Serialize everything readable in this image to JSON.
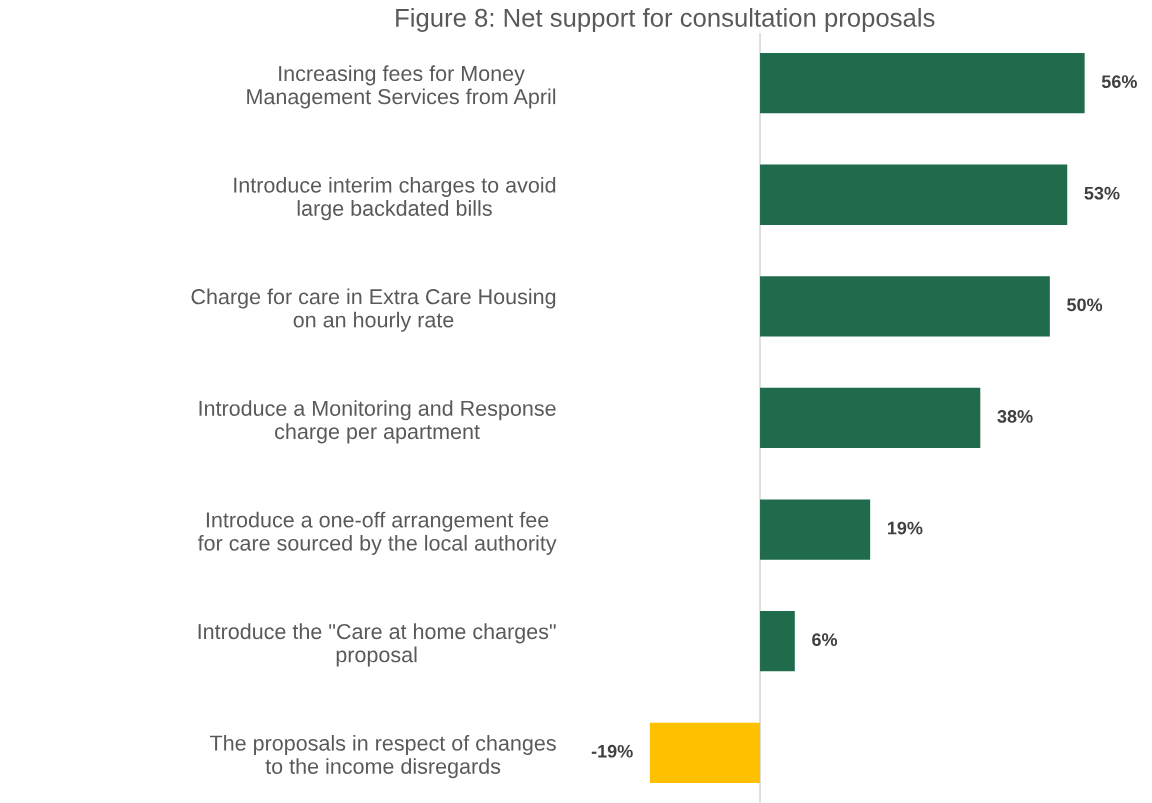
{
  "chart_data": {
    "type": "bar",
    "orientation": "horizontal",
    "title": "Figure 8: Net support for consultation proposals",
    "categories": [
      "Increasing fees for Money\nManagement Services from April",
      "Introduce interim charges to avoid\nlarge backdated bills",
      "Charge for care in Extra Care Housing\non an hourly rate",
      "Introduce a Monitoring and Response\ncharge per apartment",
      "Introduce a one-off arrangement fee\nfor care sourced by the local authority",
      "Introduce the \"Care at home charges\"\nproposal",
      "The proposals in respect of changes\nto the income disregards"
    ],
    "values": [
      56,
      53,
      50,
      38,
      19,
      6,
      -19
    ],
    "value_labels": [
      "56%",
      "53%",
      "50%",
      "38%",
      "19%",
      "6%",
      "-19%"
    ],
    "colors": [
      "#1f6b4c",
      "#1f6b4c",
      "#1f6b4c",
      "#1f6b4c",
      "#1f6b4c",
      "#1f6b4c",
      "#ffc000"
    ],
    "grid": false,
    "legend": false
  }
}
